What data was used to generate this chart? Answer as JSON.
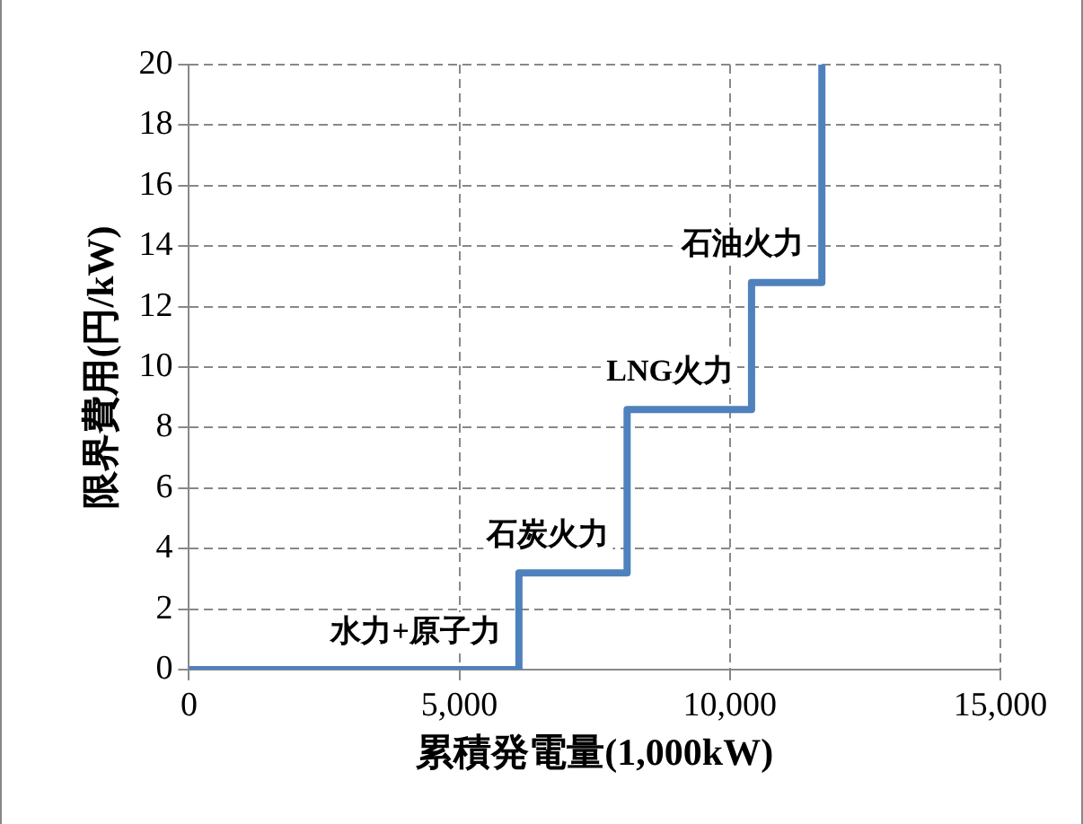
{
  "chart_data": {
    "type": "step",
    "xlabel": "累積発電量(1,000kW)",
    "ylabel": "限界費用(円/kW)",
    "x": [
      0,
      6100,
      8100,
      10400,
      11700
    ],
    "series": [
      {
        "color": "#4f81bd",
        "values": [
          0,
          3.2,
          8.6,
          12.8,
          20
        ]
      }
    ],
    "xlim": [
      0,
      15000
    ],
    "xticks": [
      {
        "value": 0,
        "label": "0"
      },
      {
        "value": 5000,
        "label": "5,000"
      },
      {
        "value": 10000,
        "label": "10,000"
      },
      {
        "value": 15000,
        "label": "15,000"
      }
    ],
    "ylim": [
      0,
      20
    ],
    "yticks": [
      0,
      2,
      4,
      6,
      8,
      10,
      12,
      14,
      16,
      18,
      20
    ],
    "grid": true,
    "legend": false,
    "marker": "none",
    "line_style": "solid",
    "annotations": [
      {
        "text": "水力+原子力",
        "x": 6100,
        "y": 0
      },
      {
        "text": "石炭火力",
        "x": 8100,
        "y": 3.2
      },
      {
        "text": "LNG火力",
        "x": 10400,
        "y": 8.6
      },
      {
        "text": "石油火力",
        "x": 11700,
        "y": 12.8
      }
    ]
  }
}
